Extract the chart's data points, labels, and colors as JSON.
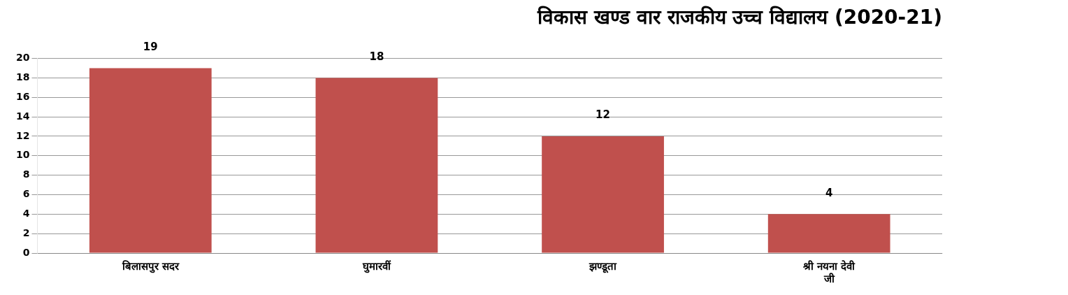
{
  "chart_data": {
    "type": "bar",
    "title": "विकास खण्ड वार राजकीय उच्च विद्यालय (2020-21)",
    "categories": [
      "बिलासपुर सदर",
      "घुमारवीं",
      "झण्डूता",
      "श्री नयना देवी जी"
    ],
    "values": [
      19,
      18,
      12,
      4
    ],
    "color": "#c0504d",
    "ylim": [
      0,
      20
    ],
    "yticks": [
      0,
      2,
      4,
      6,
      8,
      10,
      12,
      14,
      16,
      18,
      20
    ],
    "grid": "y",
    "data_labels": true
  }
}
